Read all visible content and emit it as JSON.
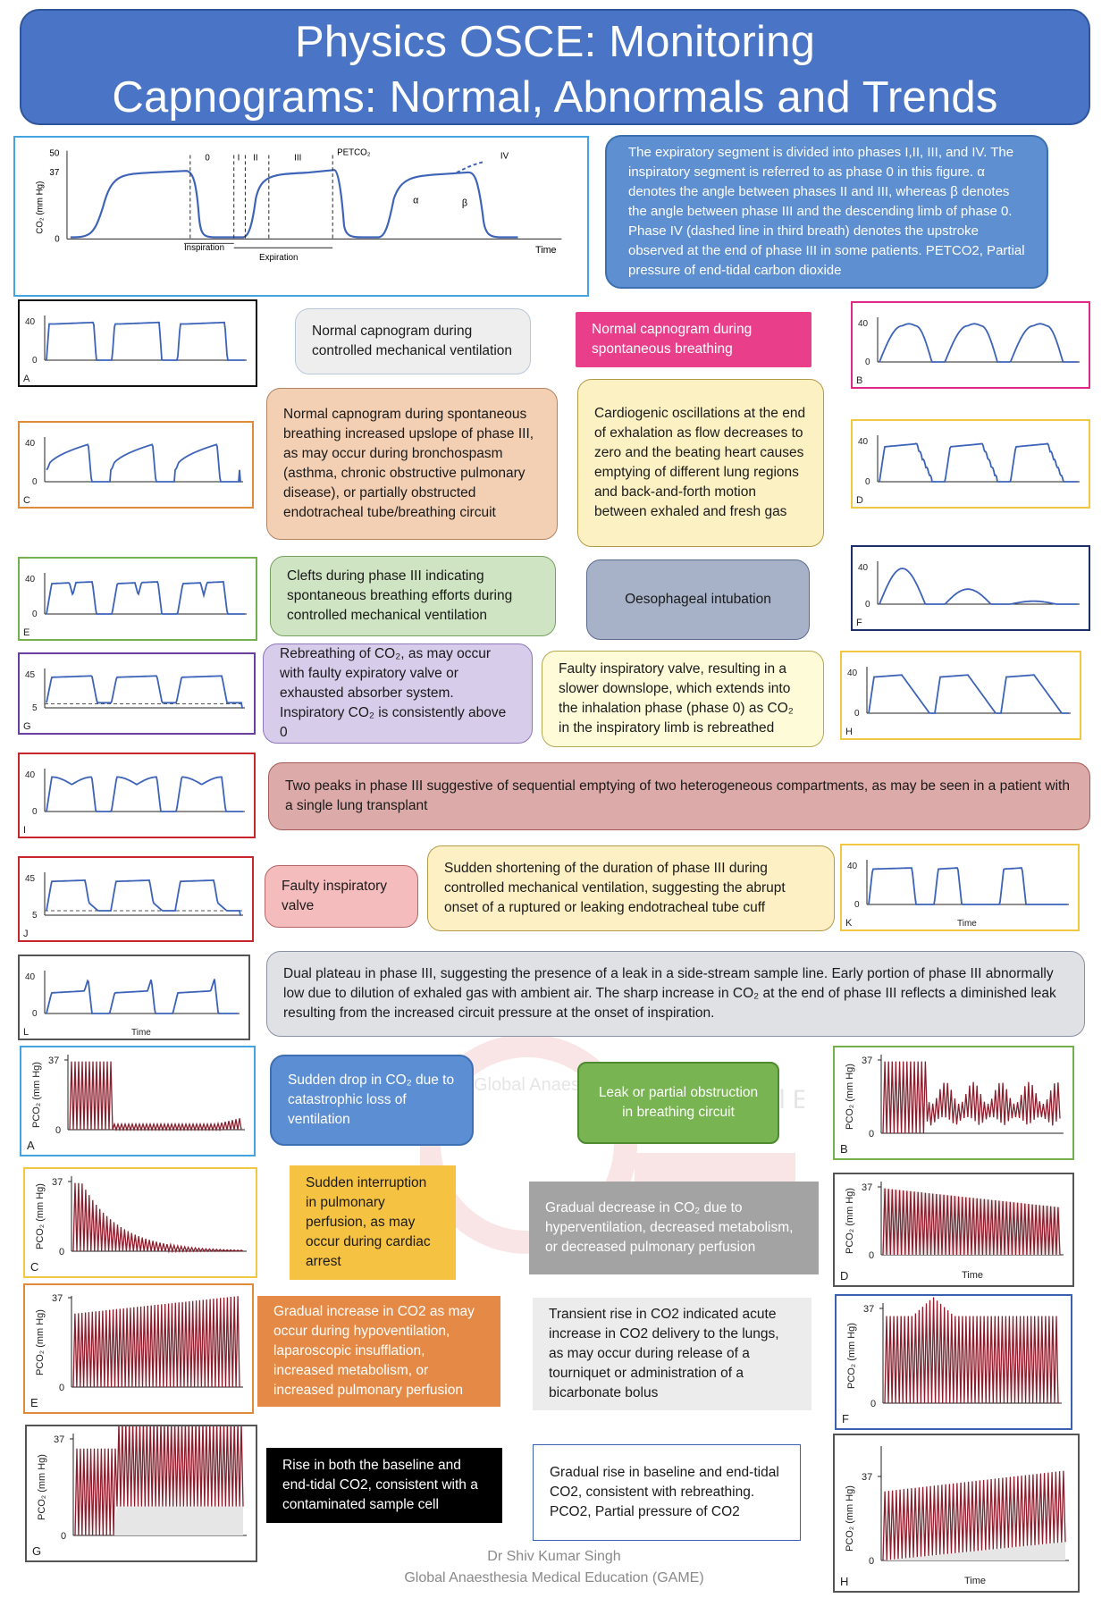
{
  "title": {
    "line1": "Physics OSCE: Monitoring",
    "line2": "Capnograms: Normal, Abnormals and Trends"
  },
  "colors": {
    "title_bg": "#4a75c6",
    "trace_blue": "#3d63b8",
    "trend_red": "#8b1d2c",
    "border_black": "#111111",
    "border_pink": "#e02887",
    "border_orange": "#e08a3c",
    "border_yellow": "#f2c744",
    "border_green": "#74b04e",
    "border_navy": "#1d2f6b",
    "border_purple": "#6b3fa0",
    "border_red": "#c8262c",
    "border_gray": "#555555",
    "border_lightblue": "#43a4e0",
    "border_blue": "#3a61b0"
  },
  "main_diagram": {
    "y_label": "CO₂ (mm Hg)",
    "y_ticks": [
      "50",
      "37",
      "0"
    ],
    "x_label": "Time",
    "phase_labels": [
      "0",
      "I",
      "II",
      "III",
      "IV"
    ],
    "petco2_label": "PETCO₂",
    "alpha": "α",
    "beta": "β",
    "inspiration": "Inspiration",
    "expiration": "Expiration"
  },
  "description": "The expiratory segment is divided into phases I,II, III, and IV. The inspiratory segment is referred to as phase 0 in this figure. α denotes the angle between phases II and III, whereas β denotes the angle between phase III and the descending limb of phase 0. Phase IV (dashed line in third breath) denotes the upstroke observed at the end of phase III in some patients. PETCO2, Partial pressure of end-tidal carbon dioxide",
  "waveforms": [
    {
      "letter": "A",
      "y_top": "40",
      "y_zero": "0"
    },
    {
      "letter": "B",
      "y_top": "40",
      "y_zero": "0"
    },
    {
      "letter": "C",
      "y_top": "40",
      "y_zero": "0"
    },
    {
      "letter": "D",
      "y_top": "40",
      "y_zero": "0"
    },
    {
      "letter": "E",
      "y_top": "40",
      "y_zero": "0"
    },
    {
      "letter": "F",
      "y_top": "40",
      "y_zero": "0"
    },
    {
      "letter": "G",
      "y_top": "45",
      "y_zero": "5"
    },
    {
      "letter": "H",
      "y_top": "40",
      "y_zero": "0"
    },
    {
      "letter": "I",
      "y_top": "40",
      "y_zero": "0"
    },
    {
      "letter": "J",
      "y_top": "45",
      "y_zero": "5"
    },
    {
      "letter": "K",
      "y_top": "40",
      "y_zero": "0",
      "x_label": "Time"
    },
    {
      "letter": "L",
      "y_top": "40",
      "y_zero": "0",
      "x_label": "Time"
    }
  ],
  "texts": {
    "A": "Normal capnogram during controlled mechanical ventilation",
    "B": "Normal capnogram during spontaneous breathing",
    "C": "Normal capnogram during spontaneous breathing increased upslope of phase III, as may occur during bronchospasm (asthma, chronic obstructive pulmonary disease), or partially obstructed endotracheal tube/breathing circuit",
    "D": "Cardiogenic oscillations at the end of exhalation as flow decreases to zero and the beating heart causes emptying of different lung regions and back-and-forth motion between exhaled and fresh gas",
    "E": "Clefts during phase III indicating spontaneous breathing efforts during controlled mechanical ventilation",
    "F": "Oesophageal intubation",
    "G": "Rebreathing of CO₂, as may occur with faulty expiratory valve or exhausted absorber system. Inspiratory CO₂ is consistently above 0",
    "H": "Faulty inspiratory valve, resulting in a slower downslope, which extends into the inhalation phase (phase 0) as CO₂ in the inspiratory limb is rebreathed",
    "I": "Two peaks in phase III suggestive of sequential emptying of two heterogeneous compartments, as may be seen in a patient with a single lung transplant",
    "J": "Faulty inspiratory valve",
    "K": "Sudden shortening of the duration of phase III during controlled mechanical ventilation, suggesting the abrupt onset of a ruptured or leaking endotracheal tube cuff",
    "L": "Dual plateau in phase III, suggesting the presence of a leak in a side-stream sample line. Early portion of phase III abnormally low due to dilution of exhaled gas with ambient air. The sharp increase in CO₂ at the end of phase III reflects a diminished leak resulting from the increased circuit pressure at the onset of inspiration."
  },
  "trends": [
    {
      "letter": "A",
      "y_label": "PCO₂ (mm Hg)",
      "y_top": "37",
      "y_zero": "0"
    },
    {
      "letter": "B",
      "y_label": "PCO₂ (mm Hg)",
      "y_top": "37",
      "y_zero": "0"
    },
    {
      "letter": "C",
      "y_label": "PCO₂ (mm Hg)",
      "y_top": "37",
      "y_zero": "0"
    },
    {
      "letter": "D",
      "y_label": "PCO₂ (mm Hg)",
      "y_top": "37",
      "y_zero": "0",
      "x_label": "Time"
    },
    {
      "letter": "E",
      "y_label": "PCO₂ (mm Hg)",
      "y_top": "37",
      "y_zero": "0"
    },
    {
      "letter": "F",
      "y_label": "PCO₂ (mm Hg)",
      "y_top": "37",
      "y_zero": "0"
    },
    {
      "letter": "G",
      "y_label": "PCO₂ (mm Hg)",
      "y_top": "37",
      "y_zero": "0"
    },
    {
      "letter": "H",
      "y_label": "PCO₂ (mm Hg)",
      "y_top": "37",
      "y_zero": "0",
      "x_label": "Time"
    }
  ],
  "trend_texts": {
    "A": "Sudden drop in CO₂ due to catastrophic loss of ventilation",
    "B": "Leak or partial obstruction in breathing circuit",
    "C": "Sudden interruption in pulmonary perfusion, as may occur during cardiac arrest",
    "D": "Gradual decrease in CO₂ due to hyperventilation, decreased metabolism, or decreased pulmonary perfusion",
    "E": "Gradual increase in CO2 as may occur during hypoventilation, laparoscopic insufflation, increased metabolism, or increased pulmonary perfusion",
    "F": "Transient rise in CO2 indicated acute increase in CO2 delivery to the lungs, as may occur during release of a tourniquet or administration of a bicarbonate bolus",
    "G": "Rise in both the baseline and end-tidal CO2, consistent with a contaminated sample cell",
    "H": "Gradual rise in baseline and end-tidal CO2, consistent with rebreathing. PCO2, Partial pressure of CO2"
  },
  "watermark": {
    "org_arc": "Global Anaesthesia",
    "org_tail": "edical E"
  },
  "footer": {
    "line1": "Dr Shiv Kumar Singh",
    "line2": "Global Anaesthesia Medical Education (GAME)"
  }
}
